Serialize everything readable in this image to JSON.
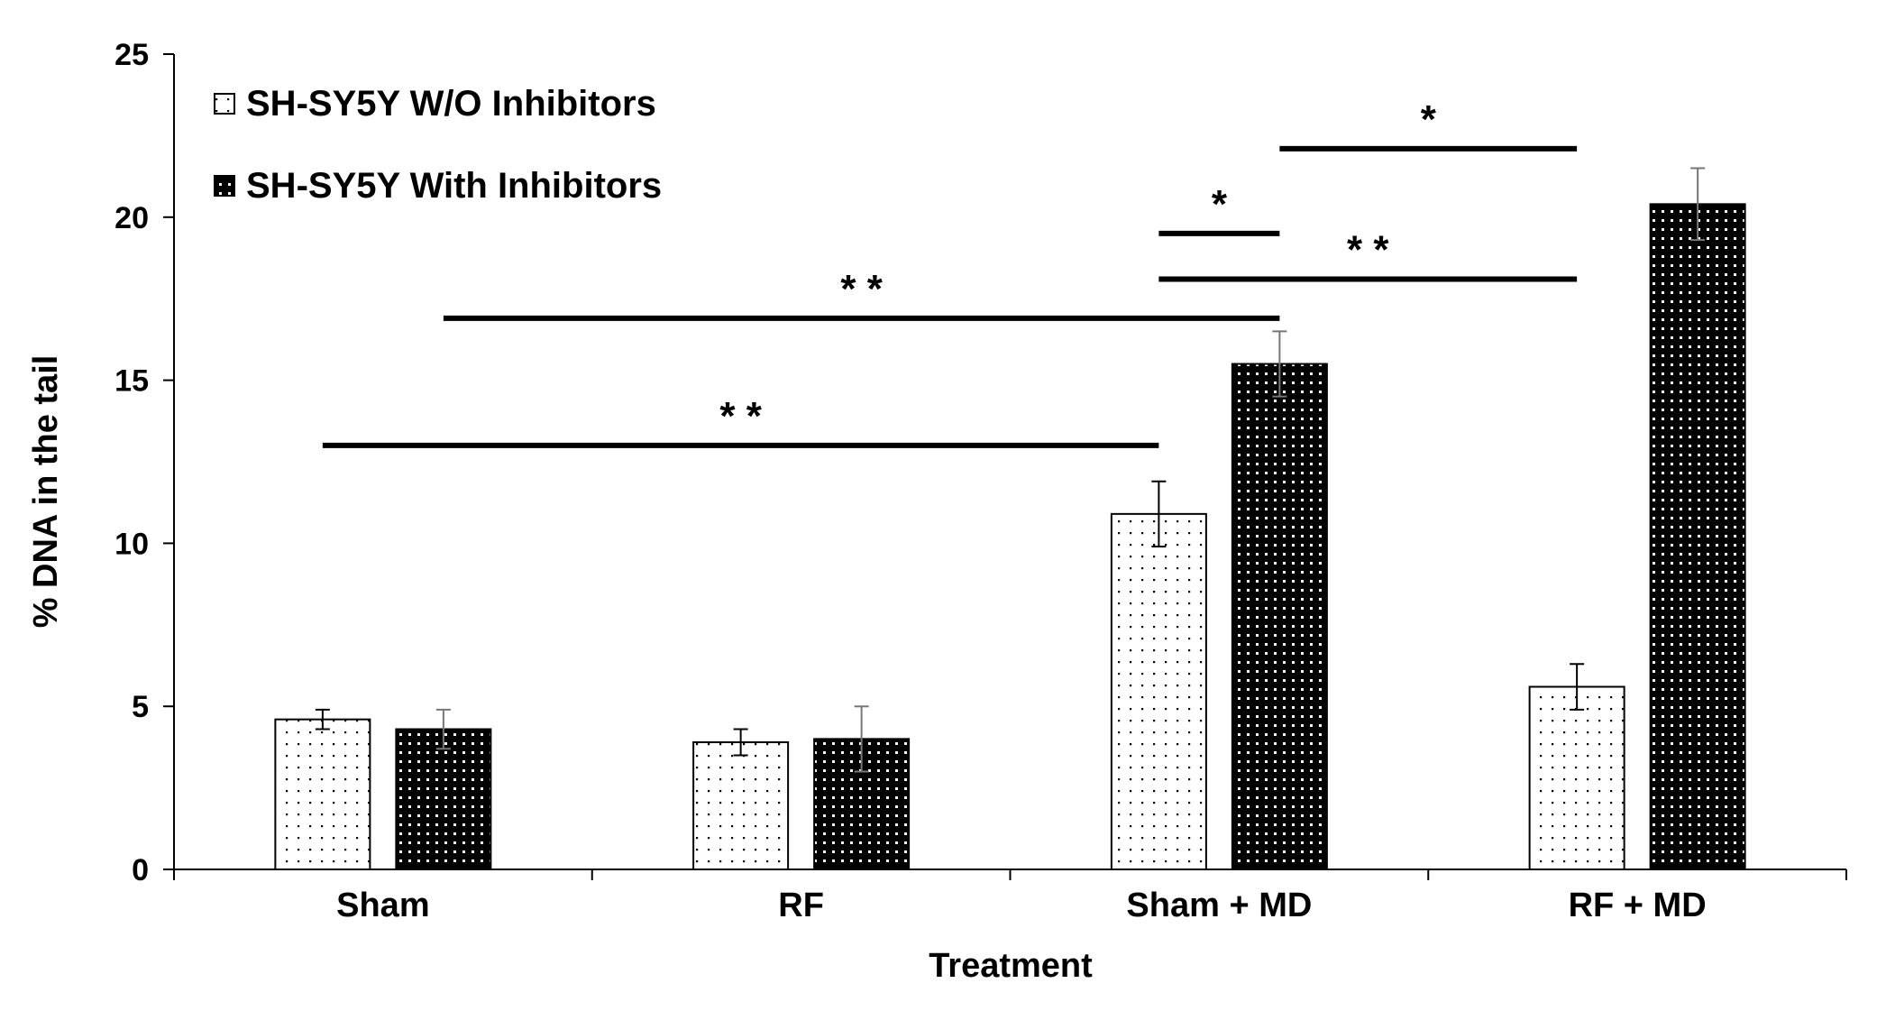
{
  "chart_data": {
    "type": "bar",
    "title": "",
    "xlabel": "Treatment",
    "ylabel": "% DNA in the tail",
    "ylim": [
      0,
      25
    ],
    "yticks": [
      0,
      5,
      10,
      15,
      20,
      25
    ],
    "grid": false,
    "legend_position": "top-left",
    "categories": [
      "Sham",
      "RF",
      "Sham + MD",
      "RF + MD"
    ],
    "series": [
      {
        "name": "SH-SY5Y W/O Inhibitors",
        "pattern": "sparse-dots",
        "fill": "#ffffff",
        "dot_color": "#000000",
        "values": [
          4.6,
          3.9,
          10.9,
          5.6
        ],
        "errors": [
          0.3,
          0.4,
          1.0,
          0.7
        ]
      },
      {
        "name": "SH-SY5Y With Inhibitors",
        "pattern": "dense-dots",
        "fill": "#000000",
        "dot_color": "#ffffff",
        "values": [
          4.3,
          4.0,
          15.5,
          20.4
        ],
        "errors": [
          0.6,
          1.0,
          1.0,
          1.1
        ]
      }
    ],
    "significance": [
      {
        "label": "* *",
        "from": {
          "category": 0,
          "series": 0
        },
        "to": {
          "category": 2,
          "series": 0
        },
        "y": 13.0
      },
      {
        "label": "* *",
        "from": {
          "category": 0,
          "series": 1
        },
        "to": {
          "category": 2,
          "series": 1
        },
        "y": 16.9
      },
      {
        "label": "* *",
        "from": {
          "category": 2,
          "series": 0
        },
        "to": {
          "category": 3,
          "series": 0
        },
        "y": 18.1
      },
      {
        "label": "*",
        "from": {
          "category": 2,
          "series": 0
        },
        "to": {
          "category": 2,
          "series": 1
        },
        "y": 19.5
      },
      {
        "label": "*",
        "from": {
          "category": 2,
          "series": 1
        },
        "to": {
          "category": 3,
          "series": 0
        },
        "y": 22.1
      }
    ]
  }
}
